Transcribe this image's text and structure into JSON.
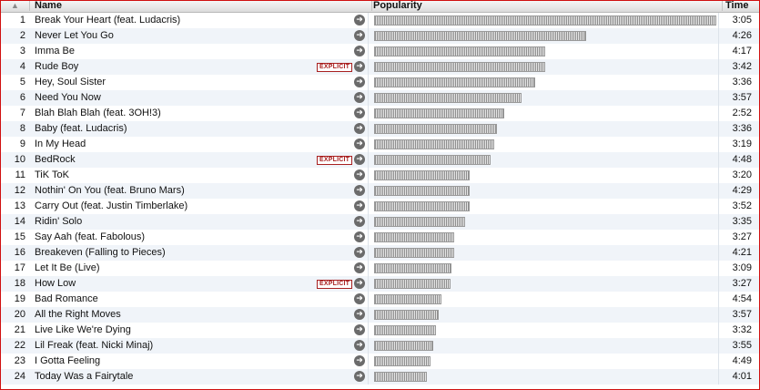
{
  "header": {
    "sort": "▲",
    "name": "Name",
    "popularity": "Popularity",
    "time": "Time"
  },
  "explicit_label": "EXPLICIT",
  "tracks": [
    {
      "num": "1",
      "name": "Break Your Heart (feat. Ludacris)",
      "explicit": false,
      "popularity": 1.0,
      "time": "3:05"
    },
    {
      "num": "2",
      "name": "Never Let You Go",
      "explicit": false,
      "popularity": 0.62,
      "time": "4:26"
    },
    {
      "num": "3",
      "name": "Imma Be",
      "explicit": false,
      "popularity": 0.5,
      "time": "4:17"
    },
    {
      "num": "4",
      "name": "Rude Boy",
      "explicit": true,
      "popularity": 0.5,
      "time": "3:42"
    },
    {
      "num": "5",
      "name": "Hey, Soul Sister",
      "explicit": false,
      "popularity": 0.47,
      "time": "3:36"
    },
    {
      "num": "6",
      "name": "Need You Now",
      "explicit": false,
      "popularity": 0.43,
      "time": "3:57"
    },
    {
      "num": "7",
      "name": "Blah Blah Blah (feat. 3OH!3)",
      "explicit": false,
      "popularity": 0.38,
      "time": "2:52"
    },
    {
      "num": "8",
      "name": "Baby (feat. Ludacris)",
      "explicit": false,
      "popularity": 0.36,
      "time": "3:36"
    },
    {
      "num": "9",
      "name": "In My Head",
      "explicit": false,
      "popularity": 0.35,
      "time": "3:19"
    },
    {
      "num": "10",
      "name": "BedRock",
      "explicit": true,
      "popularity": 0.34,
      "time": "4:48"
    },
    {
      "num": "11",
      "name": "TiK ToK",
      "explicit": false,
      "popularity": 0.28,
      "time": "3:20"
    },
    {
      "num": "12",
      "name": "Nothin' On You (feat. Bruno Mars)",
      "explicit": false,
      "popularity": 0.28,
      "time": "4:29"
    },
    {
      "num": "13",
      "name": "Carry Out (feat. Justin Timberlake)",
      "explicit": false,
      "popularity": 0.28,
      "time": "3:52"
    },
    {
      "num": "14",
      "name": "Ridin' Solo",
      "explicit": false,
      "popularity": 0.265,
      "time": "3:35"
    },
    {
      "num": "15",
      "name": "Say Aah (feat. Fabolous)",
      "explicit": false,
      "popularity": 0.235,
      "time": "3:27"
    },
    {
      "num": "16",
      "name": "Breakeven (Falling to Pieces)",
      "explicit": false,
      "popularity": 0.235,
      "time": "4:21"
    },
    {
      "num": "17",
      "name": "Let It Be (Live)",
      "explicit": false,
      "popularity": 0.227,
      "time": "3:09"
    },
    {
      "num": "18",
      "name": "How Low",
      "explicit": true,
      "popularity": 0.223,
      "time": "3:27"
    },
    {
      "num": "19",
      "name": "Bad Romance",
      "explicit": false,
      "popularity": 0.197,
      "time": "4:54"
    },
    {
      "num": "20",
      "name": "All the Right Moves",
      "explicit": false,
      "popularity": 0.19,
      "time": "3:57"
    },
    {
      "num": "21",
      "name": "Live Like We're Dying",
      "explicit": false,
      "popularity": 0.18,
      "time": "3:32"
    },
    {
      "num": "22",
      "name": "Lil Freak (feat. Nicki Minaj)",
      "explicit": false,
      "popularity": 0.173,
      "time": "3:55"
    },
    {
      "num": "23",
      "name": "I Gotta Feeling",
      "explicit": false,
      "popularity": 0.165,
      "time": "4:49"
    },
    {
      "num": "24",
      "name": "Today Was a Fairytale",
      "explicit": false,
      "popularity": 0.155,
      "time": "4:01"
    }
  ],
  "icons": {
    "go": "arrow-right-circle-icon"
  },
  "colors": {
    "frame": "#d01010",
    "explicit": "#a82020",
    "row_alt": "#f0f4f9"
  }
}
